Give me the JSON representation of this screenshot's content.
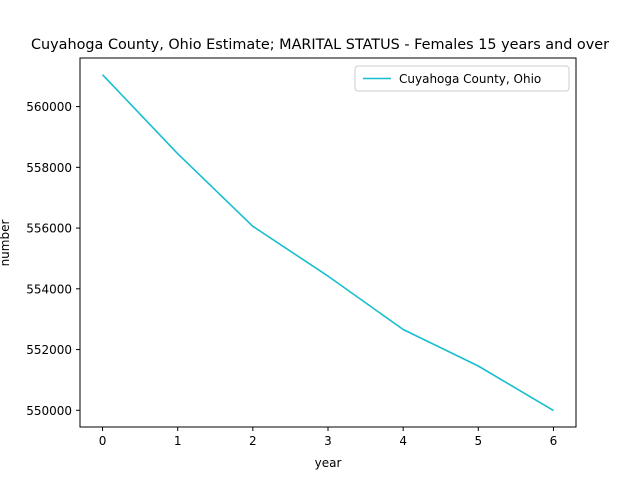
{
  "chart_data": {
    "type": "line",
    "title": "Cuyahoga County, Ohio Estimate; MARITAL STATUS - Females 15 years and over",
    "xlabel": "year",
    "ylabel": "number",
    "x": [
      0,
      1,
      2,
      3,
      4,
      5,
      6
    ],
    "series": [
      {
        "name": "Cuyahoga County, Ohio",
        "color": "#17becf",
        "values": [
          561050,
          558450,
          556060,
          554420,
          552660,
          551460,
          549990
        ]
      }
    ],
    "xlim": [
      -0.3,
      6.3
    ],
    "ylim": [
      549450,
      561600
    ],
    "xticks": [
      0,
      1,
      2,
      3,
      4,
      5,
      6
    ],
    "yticks": [
      550000,
      552000,
      554000,
      556000,
      558000,
      560000
    ],
    "grid": false,
    "legend_position": "top-right"
  }
}
